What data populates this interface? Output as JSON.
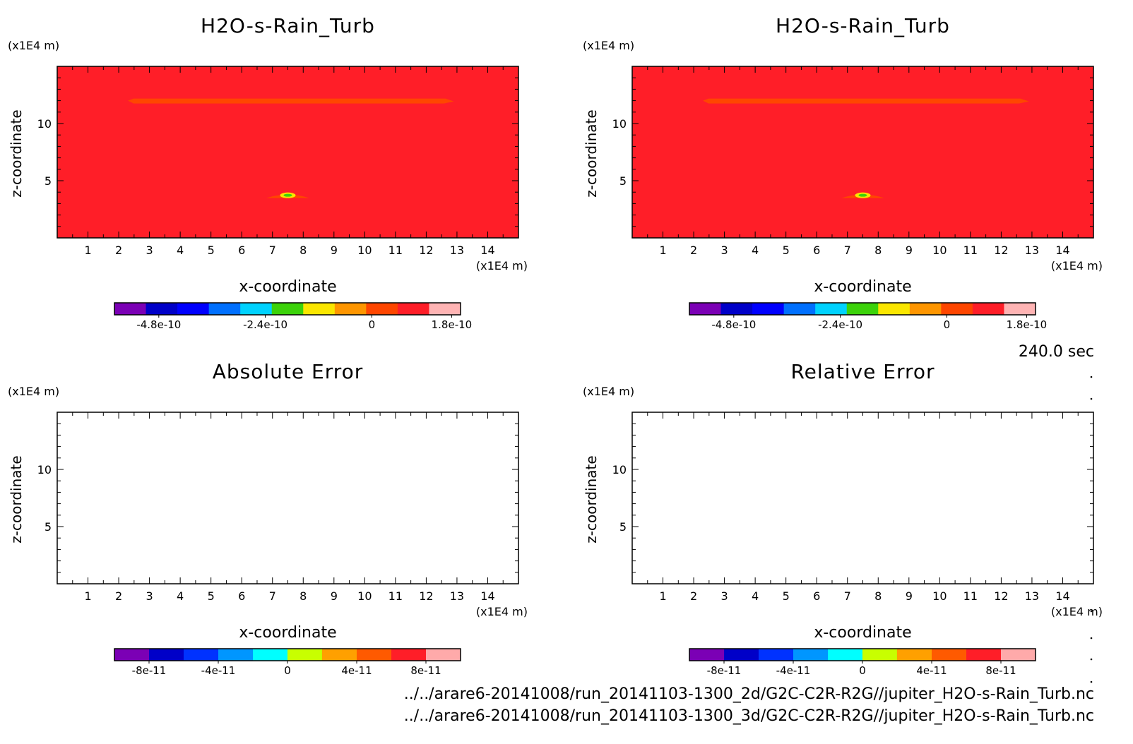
{
  "time_label": "240.0 sec",
  "file_paths": [
    "../../arare6-20141008/run_20141103-1300_2d/G2C-C2R-R2G//jupiter_H2O-s-Rain_Turb.nc",
    "../../arare6-20141008/run_20141103-1300_3d/G2C-C2R-R2G//jupiter_H2O-s-Rain_Turb.nc"
  ],
  "chart_data": [
    {
      "type": "heatmap",
      "title": "H2O-s-Rain_Turb",
      "xlabel": "x-coordinate",
      "ylabel": "z-coordinate",
      "x_unit": "(x1E4 m)",
      "y_unit": "(x1E4 m)",
      "xlim": [
        0,
        15
      ],
      "ylim": [
        0,
        15
      ],
      "x_ticks": [
        1,
        2,
        3,
        4,
        5,
        6,
        7,
        8,
        9,
        10,
        11,
        12,
        13,
        14
      ],
      "y_ticks": [
        5,
        10
      ],
      "background_value": 1e-10,
      "features": [
        {
          "shape": "band",
          "x": [
            2.3,
            12.9
          ],
          "z": 12,
          "value": 0
        },
        {
          "shape": "blob",
          "x": [
            6.8,
            8.2
          ],
          "z": 3.6,
          "value": -1.5e-10
        }
      ],
      "colorbar": {
        "colors": [
          "#7b00b5",
          "#0000c8",
          "#0000ff",
          "#0070ff",
          "#00d2ff",
          "#3cd20a",
          "#fae600",
          "#ff9600",
          "#ff4600",
          "#ff1e28",
          "#ffb4b4"
        ],
        "tick_labels": [
          "-4.8e-10",
          "-2.4e-10",
          "0",
          "1.8e-10"
        ],
        "tick_values": [
          -4.8e-10,
          -2.4e-10,
          0,
          1.8e-10
        ],
        "range": [
          -5.8e-10,
          2e-10
        ]
      }
    },
    {
      "type": "heatmap",
      "title": "H2O-s-Rain_Turb",
      "xlabel": "x-coordinate",
      "ylabel": "z-coordinate",
      "x_unit": "(x1E4 m)",
      "y_unit": "(x1E4 m)",
      "xlim": [
        0,
        15
      ],
      "ylim": [
        0,
        15
      ],
      "x_ticks": [
        1,
        2,
        3,
        4,
        5,
        6,
        7,
        8,
        9,
        10,
        11,
        12,
        13,
        14
      ],
      "y_ticks": [
        5,
        10
      ],
      "background_value": 1e-10,
      "features": [
        {
          "shape": "band",
          "x": [
            2.3,
            12.9
          ],
          "z": 12,
          "value": 0
        },
        {
          "shape": "blob",
          "x": [
            6.8,
            8.2
          ],
          "z": 3.6,
          "value": -1.5e-10
        }
      ],
      "colorbar": {
        "colors": [
          "#7b00b5",
          "#0000c8",
          "#0000ff",
          "#0070ff",
          "#00d2ff",
          "#3cd20a",
          "#fae600",
          "#ff9600",
          "#ff4600",
          "#ff1e28",
          "#ffb4b4"
        ],
        "tick_labels": [
          "-4.8e-10",
          "-2.4e-10",
          "0",
          "1.8e-10"
        ],
        "tick_values": [
          -4.8e-10,
          -2.4e-10,
          0,
          1.8e-10
        ],
        "range": [
          -5.8e-10,
          2e-10
        ]
      }
    },
    {
      "type": "heatmap",
      "title": "Absolute Error",
      "xlabel": "x-coordinate",
      "ylabel": "z-coordinate",
      "x_unit": "(x1E4 m)",
      "y_unit": "(x1E4 m)",
      "xlim": [
        0,
        15
      ],
      "ylim": [
        0,
        15
      ],
      "x_ticks": [
        1,
        2,
        3,
        4,
        5,
        6,
        7,
        8,
        9,
        10,
        11,
        12,
        13,
        14
      ],
      "y_ticks": [
        5,
        10
      ],
      "background_value": null,
      "features": [],
      "colorbar": {
        "colors": [
          "#7b00b5",
          "#0000c8",
          "#0032ff",
          "#0096ff",
          "#00ffff",
          "#c8ff00",
          "#ffa000",
          "#ff5a00",
          "#ff1e28",
          "#ffaaaa"
        ],
        "tick_labels": [
          "-8e-11",
          "-4e-11",
          "0",
          "4e-11",
          "8e-11"
        ],
        "tick_values": [
          -8e-11,
          -4e-11,
          0,
          4e-11,
          8e-11
        ],
        "range": [
          -1e-10,
          1e-10
        ]
      }
    },
    {
      "type": "heatmap",
      "title": "Relative Error",
      "xlabel": "x-coordinate",
      "ylabel": "z-coordinate",
      "x_unit": "(x1E4 m)",
      "y_unit": "(x1E4 m)",
      "xlim": [
        0,
        15
      ],
      "ylim": [
        0,
        15
      ],
      "x_ticks": [
        1,
        2,
        3,
        4,
        5,
        6,
        7,
        8,
        9,
        10,
        11,
        12,
        13,
        14
      ],
      "y_ticks": [
        5,
        10
      ],
      "background_value": null,
      "features": [],
      "colorbar": {
        "colors": [
          "#7b00b5",
          "#0000c8",
          "#0032ff",
          "#0096ff",
          "#00ffff",
          "#c8ff00",
          "#ffa000",
          "#ff5a00",
          "#ff1e28",
          "#ffaaaa"
        ],
        "tick_labels": [
          "-8e-11",
          "-4e-11",
          "0",
          "4e-11",
          "8e-11"
        ],
        "tick_values": [
          -8e-11,
          -4e-11,
          0,
          4e-11,
          8e-11
        ],
        "range": [
          -1e-10,
          1e-10
        ]
      }
    }
  ]
}
